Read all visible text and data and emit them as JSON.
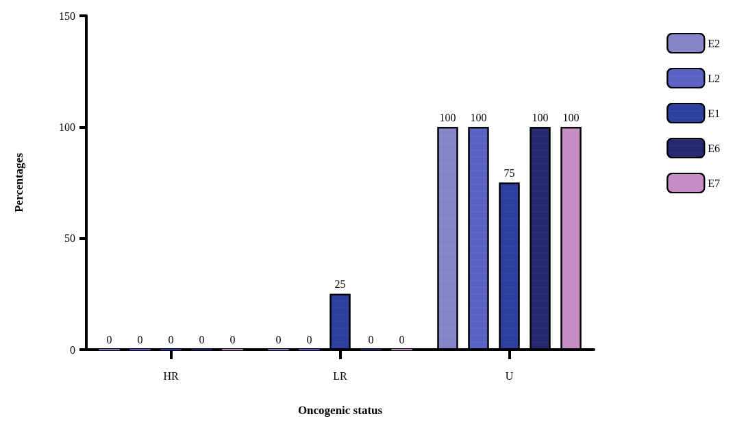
{
  "chart_data": {
    "type": "bar",
    "xlabel": "Oncogenic status",
    "ylabel": "Percentages",
    "categories": [
      "HR",
      "LR",
      "U"
    ],
    "series": [
      {
        "name": "E2",
        "color": "#8585c9",
        "values": [
          0,
          0,
          100
        ]
      },
      {
        "name": "L2",
        "color": "#5b63c2",
        "values": [
          0,
          0,
          100
        ]
      },
      {
        "name": "E1",
        "color": "#2f3f9f",
        "values": [
          0,
          25,
          75
        ]
      },
      {
        "name": "E6",
        "color": "#25296e",
        "values": [
          0,
          0,
          100
        ]
      },
      {
        "name": "E7",
        "color": "#c48dc4",
        "values": [
          0,
          0,
          100
        ]
      }
    ],
    "ylim": [
      0,
      150
    ],
    "yticks": [
      0,
      50,
      100,
      150
    ],
    "data_labels": true,
    "grid": false,
    "legend": "top right"
  }
}
